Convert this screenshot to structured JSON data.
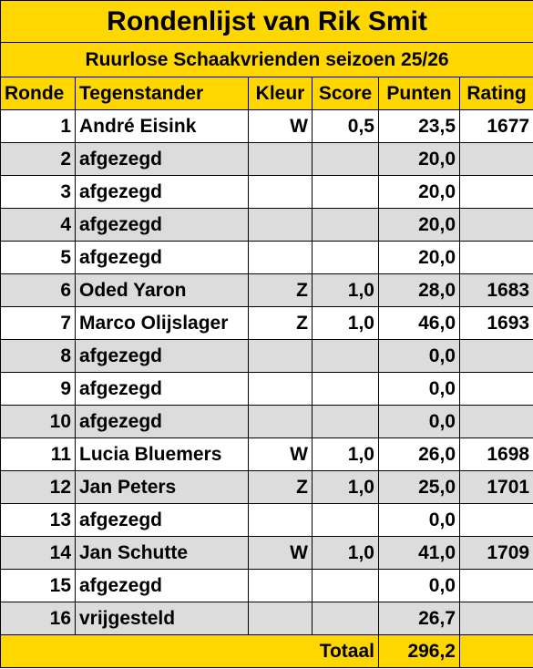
{
  "title": "Rondenlijst van Rik Smit",
  "subtitle": "Ruurlose Schaakvrienden seizoen 25/26",
  "headers": {
    "ronde": "Ronde",
    "tegenstander": "Tegenstander",
    "kleur": "Kleur",
    "score": "Score",
    "punten": "Punten",
    "rating": "Rating"
  },
  "rows": [
    {
      "ronde": "1",
      "tegenstander": "André Eisink",
      "kleur": "W",
      "score": "0,5",
      "punten": "23,5",
      "rating": "1677"
    },
    {
      "ronde": "2",
      "tegenstander": "afgezegd",
      "kleur": "",
      "score": "",
      "punten": "20,0",
      "rating": ""
    },
    {
      "ronde": "3",
      "tegenstander": "afgezegd",
      "kleur": "",
      "score": "",
      "punten": "20,0",
      "rating": ""
    },
    {
      "ronde": "4",
      "tegenstander": "afgezegd",
      "kleur": "",
      "score": "",
      "punten": "20,0",
      "rating": ""
    },
    {
      "ronde": "5",
      "tegenstander": "afgezegd",
      "kleur": "",
      "score": "",
      "punten": "20,0",
      "rating": ""
    },
    {
      "ronde": "6",
      "tegenstander": "Oded Yaron",
      "kleur": "Z",
      "score": "1,0",
      "punten": "28,0",
      "rating": "1683"
    },
    {
      "ronde": "7",
      "tegenstander": "Marco Olijslager",
      "kleur": "Z",
      "score": "1,0",
      "punten": "46,0",
      "rating": "1693"
    },
    {
      "ronde": "8",
      "tegenstander": "afgezegd",
      "kleur": "",
      "score": "",
      "punten": "0,0",
      "rating": ""
    },
    {
      "ronde": "9",
      "tegenstander": "afgezegd",
      "kleur": "",
      "score": "",
      "punten": "0,0",
      "rating": ""
    },
    {
      "ronde": "10",
      "tegenstander": "afgezegd",
      "kleur": "",
      "score": "",
      "punten": "0,0",
      "rating": ""
    },
    {
      "ronde": "11",
      "tegenstander": "Lucia Bluemers",
      "kleur": "W",
      "score": "1,0",
      "punten": "26,0",
      "rating": "1698"
    },
    {
      "ronde": "12",
      "tegenstander": "Jan Peters",
      "kleur": "Z",
      "score": "1,0",
      "punten": "25,0",
      "rating": "1701"
    },
    {
      "ronde": "13",
      "tegenstander": "afgezegd",
      "kleur": "",
      "score": "",
      "punten": "0,0",
      "rating": ""
    },
    {
      "ronde": "14",
      "tegenstander": "Jan Schutte",
      "kleur": "W",
      "score": "1,0",
      "punten": "41,0",
      "rating": "1709"
    },
    {
      "ronde": "15",
      "tegenstander": "afgezegd",
      "kleur": "",
      "score": "",
      "punten": "0,0",
      "rating": ""
    },
    {
      "ronde": "16",
      "tegenstander": "vrijgesteld",
      "kleur": "",
      "score": "",
      "punten": "26,7",
      "rating": ""
    }
  ],
  "footer": {
    "label": "Totaal",
    "total": "296,2"
  },
  "colors": {
    "header_bg": "#ffd700",
    "alt_row_bg": "#dcdcdc",
    "row_bg": "#ffffff"
  }
}
